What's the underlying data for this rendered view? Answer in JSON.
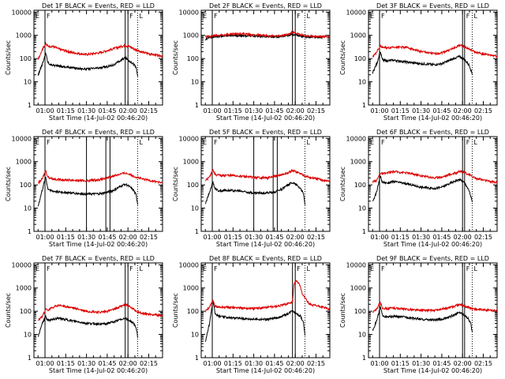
{
  "colors": {
    "events": "#000000",
    "lld": "#dd0000",
    "axis": "#000000",
    "background": "#ffffff"
  },
  "common": {
    "x_ticks": [
      "01:00",
      "01:15",
      "01:30",
      "01:45",
      "02:00",
      "02:15"
    ],
    "x_tick_values": [
      60,
      75,
      90,
      105,
      120,
      135
    ],
    "x_range_min": [
      52,
      145
    ],
    "y_ticks": [
      "1",
      "10",
      "100",
      "1000",
      "10000"
    ],
    "y_tick_values": [
      1,
      10,
      100,
      1000,
      10000
    ],
    "y_range": [
      1,
      12000
    ],
    "ylabel": "Counts/sec",
    "xlabel": "Start Time (14-Jul-02 00:46:20)",
    "marker_letters": {
      "e": "E",
      "f": "F",
      "l": "L"
    }
  },
  "chart_data": [
    {
      "type": "line",
      "title": "Det 1F BLACK = Events, RED = LLD",
      "profile": "Det1F",
      "x_range": [
        52,
        145
      ],
      "markers": {
        "E_solid": [
          52
        ],
        "F_solid": [
          60,
          118,
          120
        ],
        "solid": [],
        "L_dotted": [
          127
        ]
      },
      "series": [
        {
          "name": "Events",
          "x": [
            55,
            59,
            60.5,
            62,
            64,
            70,
            80,
            90,
            100,
            105,
            110,
            115,
            118,
            121,
            124,
            126,
            127
          ],
          "values": [
            20,
            80,
            180,
            70,
            55,
            48,
            40,
            35,
            40,
            45,
            55,
            85,
            110,
            80,
            60,
            40,
            18
          ]
        },
        {
          "name": "LLD",
          "x": [
            55,
            57,
            59,
            60.5,
            62,
            66,
            70,
            80,
            90,
            100,
            105,
            110,
            115,
            118,
            121,
            125,
            130,
            140,
            145
          ],
          "values": [
            90,
            180,
            320,
            420,
            350,
            330,
            260,
            180,
            150,
            180,
            220,
            270,
            330,
            360,
            330,
            250,
            190,
            140,
            130
          ]
        }
      ]
    },
    {
      "type": "line",
      "title": "Det 2F BLACK = Events, RED = LLD",
      "profile": "Det2F",
      "x_range": [
        52,
        145
      ],
      "markers": {
        "E_solid": [
          52
        ],
        "F_solid": [
          60,
          118,
          120
        ],
        "solid": [],
        "L_dotted": [
          127
        ]
      },
      "series": [
        {
          "name": "Events",
          "x": [
            55,
            56,
            58,
            60,
            70,
            80,
            90,
            100,
            105,
            110,
            115,
            118,
            121,
            125,
            130,
            140
          ],
          "values": [
            600,
            750,
            800,
            850,
            950,
            1000,
            950,
            880,
            870,
            900,
            980,
            1100,
            1000,
            920,
            850,
            820
          ]
        },
        {
          "name": "LLD",
          "x": [
            55,
            58,
            60,
            70,
            80,
            90,
            100,
            105,
            110,
            115,
            118,
            121,
            125,
            130,
            140,
            145
          ],
          "values": [
            900,
            900,
            950,
            1100,
            1200,
            1050,
            950,
            930,
            960,
            1100,
            1350,
            1200,
            1000,
            920,
            880,
            900
          ]
        }
      ]
    },
    {
      "type": "line",
      "title": "Det 3F BLACK = Events, RED = LLD",
      "profile": "Det3F",
      "x_range": [
        52,
        145
      ],
      "markers": {
        "E_solid": [
          52
        ],
        "F_solid": [
          60,
          120,
          121.5
        ],
        "solid": [],
        "L_dotted": [
          127
        ]
      },
      "series": [
        {
          "name": "Events",
          "x": [
            55,
            58,
            60.5,
            62,
            65,
            70,
            80,
            90,
            100,
            105,
            110,
            115,
            118,
            121,
            123,
            125,
            127
          ],
          "values": [
            25,
            60,
            200,
            90,
            80,
            85,
            70,
            60,
            55,
            60,
            80,
            110,
            120,
            95,
            70,
            50,
            22
          ]
        },
        {
          "name": "LLD",
          "x": [
            55,
            58,
            60.5,
            63,
            66,
            70,
            80,
            90,
            100,
            105,
            110,
            115,
            118,
            121,
            125,
            130,
            140,
            145
          ],
          "values": [
            120,
            200,
            350,
            300,
            290,
            320,
            300,
            200,
            160,
            180,
            230,
            300,
            380,
            330,
            250,
            180,
            140,
            130
          ]
        }
      ]
    },
    {
      "type": "line",
      "title": "Det 4F BLACK = Events, RED = LLD",
      "profile": "Det4F",
      "x_range": [
        52,
        145
      ],
      "markers": {
        "E_solid": [
          52
        ],
        "F_solid": [
          60
        ],
        "solid": [
          90,
          104,
          107
        ],
        "L_dotted": [
          127
        ]
      },
      "series": [
        {
          "name": "Events",
          "x": [
            55,
            58,
            60.5,
            62,
            65,
            70,
            80,
            90,
            100,
            105,
            110,
            115,
            118,
            121,
            124,
            126,
            127
          ],
          "values": [
            12,
            60,
            220,
            70,
            55,
            50,
            45,
            40,
            42,
            48,
            60,
            90,
            110,
            85,
            60,
            35,
            15
          ]
        },
        {
          "name": "LLD",
          "x": [
            55,
            58,
            60.5,
            62,
            66,
            70,
            80,
            90,
            100,
            105,
            110,
            115,
            118,
            121,
            125,
            130,
            140,
            145
          ],
          "values": [
            120,
            180,
            420,
            220,
            180,
            170,
            160,
            150,
            170,
            200,
            250,
            300,
            320,
            290,
            230,
            180,
            140,
            120
          ]
        }
      ]
    },
    {
      "type": "line",
      "title": "Det 5F BLACK = Events, RED = LLD",
      "profile": "Det5F",
      "x_range": [
        52,
        145
      ],
      "markers": {
        "E_solid": [
          52
        ],
        "F_solid": [
          60
        ],
        "solid": [
          90,
          104,
          107
        ],
        "L_dotted": [
          127
        ]
      },
      "series": [
        {
          "name": "Events",
          "x": [
            55,
            58,
            60.5,
            62,
            65,
            70,
            80,
            90,
            100,
            105,
            110,
            115,
            118,
            121,
            124,
            126,
            127
          ],
          "values": [
            15,
            50,
            130,
            70,
            55,
            60,
            55,
            45,
            45,
            50,
            65,
            100,
            130,
            100,
            70,
            40,
            15
          ]
        },
        {
          "name": "LLD",
          "x": [
            55,
            58,
            60.5,
            62,
            66,
            70,
            80,
            90,
            100,
            105,
            110,
            115,
            118,
            121,
            125,
            130,
            140,
            145
          ],
          "values": [
            150,
            220,
            450,
            280,
            250,
            260,
            240,
            210,
            200,
            230,
            270,
            330,
            420,
            360,
            280,
            210,
            160,
            140
          ]
        }
      ]
    },
    {
      "type": "line",
      "title": "Det 6F BLACK = Events, RED = LLD",
      "profile": "Det6F",
      "x_range": [
        52,
        145
      ],
      "markers": {
        "E_solid": [
          52
        ],
        "F_solid": [
          60,
          120,
          121.5
        ],
        "solid": [],
        "L_dotted": [
          127
        ]
      },
      "series": [
        {
          "name": "Events",
          "x": [
            55,
            58,
            60.5,
            62,
            66,
            70,
            80,
            90,
            100,
            105,
            110,
            115,
            118,
            121,
            123,
            125,
            127
          ],
          "values": [
            20,
            50,
            250,
            130,
            120,
            140,
            110,
            80,
            70,
            80,
            110,
            150,
            170,
            130,
            90,
            50,
            20
          ]
        },
        {
          "name": "LLD",
          "x": [
            55,
            58,
            60.5,
            63,
            66,
            70,
            80,
            90,
            100,
            105,
            110,
            115,
            118,
            121,
            125,
            130,
            140,
            145
          ],
          "values": [
            130,
            160,
            320,
            300,
            330,
            380,
            330,
            250,
            200,
            220,
            270,
            330,
            380,
            350,
            270,
            190,
            140,
            130
          ]
        }
      ]
    },
    {
      "type": "line",
      "title": "Det 7F BLACK = Events, RED = LLD",
      "profile": "Det7F",
      "x_range": [
        52,
        145
      ],
      "markers": {
        "E_solid": [
          52
        ],
        "F_solid": [
          60,
          118,
          120
        ],
        "solid": [],
        "L_dotted": [
          127
        ]
      },
      "series": [
        {
          "name": "Events",
          "x": [
            55,
            58,
            60.5,
            62,
            65,
            70,
            80,
            90,
            100,
            105,
            110,
            115,
            118,
            121,
            124,
            126,
            127
          ],
          "values": [
            8,
            30,
            60,
            40,
            45,
            50,
            38,
            30,
            28,
            30,
            35,
            45,
            50,
            40,
            30,
            20,
            8
          ]
        },
        {
          "name": "LLD",
          "x": [
            55,
            58,
            60.5,
            62,
            66,
            70,
            80,
            90,
            100,
            105,
            110,
            115,
            118,
            121,
            125,
            130,
            140,
            145
          ],
          "values": [
            40,
            60,
            120,
            110,
            150,
            180,
            140,
            100,
            90,
            100,
            120,
            160,
            200,
            160,
            110,
            80,
            70,
            65
          ]
        }
      ]
    },
    {
      "type": "line",
      "title": "Det 8F BLACK = Events, RED = LLD",
      "profile": "Det8F",
      "x_range": [
        52,
        145
      ],
      "markers": {
        "E_solid": [
          52
        ],
        "F_solid": [
          60,
          118,
          120
        ],
        "solid": [],
        "L_dotted": [
          127
        ]
      },
      "series": [
        {
          "name": "Events",
          "x": [
            55,
            58,
            60.5,
            62,
            65,
            70,
            80,
            90,
            100,
            105,
            110,
            115,
            118,
            121,
            124,
            126,
            127
          ],
          "values": [
            5,
            30,
            300,
            80,
            60,
            55,
            50,
            45,
            45,
            50,
            60,
            80,
            110,
            80,
            60,
            30,
            10
          ]
        },
        {
          "name": "LLD",
          "x": [
            55,
            58,
            60.5,
            62,
            66,
            70,
            80,
            90,
            100,
            105,
            110,
            115,
            118,
            119,
            120.5,
            121.5,
            123,
            125,
            130,
            140,
            145
          ],
          "values": [
            100,
            150,
            280,
            160,
            150,
            150,
            140,
            130,
            150,
            160,
            180,
            220,
            250,
            1400,
            2000,
            1800,
            1500,
            600,
            200,
            150,
            120
          ]
        }
      ]
    },
    {
      "type": "line",
      "title": "Det 9F BLACK = Events, RED = LLD",
      "profile": "Det9F",
      "x_range": [
        52,
        145
      ],
      "markers": {
        "E_solid": [
          52
        ],
        "F_solid": [
          60,
          120,
          121.5
        ],
        "solid": [],
        "L_dotted": [
          127
        ]
      },
      "series": [
        {
          "name": "Events",
          "x": [
            55,
            58,
            60.5,
            62,
            65,
            70,
            80,
            90,
            100,
            105,
            110,
            115,
            118,
            121,
            124,
            126,
            127
          ],
          "values": [
            15,
            40,
            150,
            70,
            55,
            60,
            55,
            45,
            42,
            45,
            55,
            75,
            90,
            70,
            50,
            30,
            12
          ]
        },
        {
          "name": "LLD",
          "x": [
            55,
            58,
            60.5,
            62,
            66,
            70,
            80,
            90,
            100,
            105,
            110,
            115,
            118,
            121,
            125,
            130,
            140,
            145
          ],
          "values": [
            90,
            120,
            250,
            140,
            130,
            140,
            120,
            110,
            110,
            120,
            140,
            170,
            200,
            170,
            140,
            120,
            110,
            105
          ]
        }
      ]
    }
  ]
}
